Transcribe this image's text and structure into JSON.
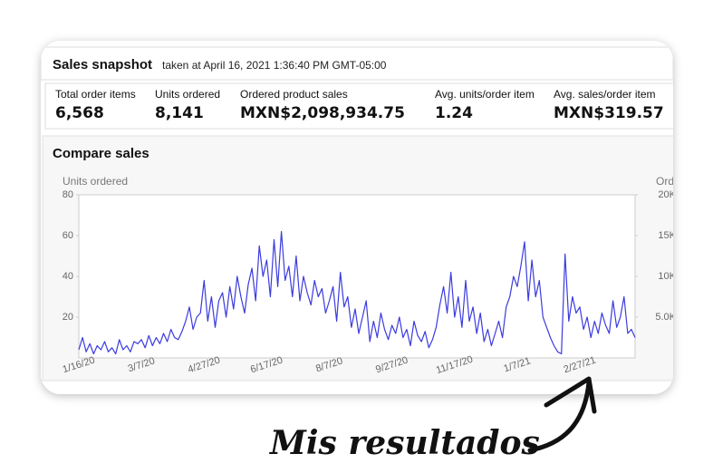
{
  "header": {
    "title": "Sales snapshot",
    "subtitle": "taken at April 16, 2021 1:36:40 PM GMT-05:00"
  },
  "metrics": [
    {
      "label": "Total order items",
      "value": "6,568"
    },
    {
      "label": "Units ordered",
      "value": "8,141"
    },
    {
      "label": "Ordered product sales",
      "value": "MXN$2,098,934.75"
    },
    {
      "label": "Avg. units/order item",
      "value": "1.24"
    },
    {
      "label": "Avg. sales/order item",
      "value": "MXN$319.57"
    }
  ],
  "chart_data": {
    "type": "line",
    "title": "Compare sales",
    "ylabel": "Units ordered",
    "y2label": "Ord",
    "color": "#3b3bdf",
    "categories": [
      "1/16/20",
      null,
      null,
      null,
      null,
      null,
      null,
      null,
      null,
      null,
      null,
      null,
      null,
      null,
      null,
      null,
      null,
      "3/7/20",
      null,
      null,
      null,
      null,
      null,
      null,
      null,
      null,
      null,
      null,
      null,
      null,
      null,
      null,
      null,
      null,
      "4/27/20",
      null,
      null,
      null,
      null,
      null,
      null,
      null,
      null,
      null,
      null,
      null,
      null,
      null,
      null,
      null,
      null,
      "6/17/20",
      null,
      null,
      null,
      null,
      null,
      null,
      null,
      null,
      null,
      null,
      null,
      null,
      null,
      null,
      null,
      null,
      "8/7/20",
      null,
      null,
      null,
      null,
      null,
      null,
      null,
      null,
      null,
      null,
      null,
      null,
      null,
      null,
      null,
      null,
      "9/27/20",
      null,
      null,
      null,
      null,
      null,
      null,
      null,
      null,
      null,
      null,
      null,
      null,
      null,
      null,
      null,
      null,
      "11/17/20",
      null,
      null,
      null,
      null,
      null,
      null,
      null,
      null,
      null,
      null,
      null,
      null,
      null,
      null,
      null,
      null,
      "1/7/21",
      null,
      null,
      null,
      null,
      null,
      null,
      null,
      null,
      null,
      null,
      null,
      null,
      null,
      null,
      null,
      null,
      "2/27/21",
      null,
      null,
      null,
      null,
      null,
      null,
      null,
      null,
      null,
      null,
      null,
      null,
      null,
      null,
      null
    ],
    "values": [
      4,
      10,
      3,
      7,
      2,
      6,
      4,
      8,
      3,
      5,
      2,
      9,
      4,
      6,
      3,
      8,
      7,
      9,
      5,
      11,
      6,
      10,
      7,
      12,
      8,
      14,
      10,
      9,
      13,
      18,
      25,
      14,
      20,
      22,
      38,
      18,
      30,
      15,
      28,
      32,
      20,
      35,
      24,
      40,
      30,
      22,
      36,
      44,
      28,
      55,
      40,
      48,
      30,
      58,
      35,
      62,
      38,
      45,
      30,
      50,
      28,
      40,
      32,
      26,
      38,
      30,
      34,
      22,
      28,
      35,
      18,
      42,
      25,
      30,
      15,
      24,
      12,
      20,
      28,
      8,
      18,
      10,
      22,
      14,
      9,
      16,
      12,
      20,
      10,
      14,
      6,
      18,
      11,
      8,
      13,
      5,
      9,
      15,
      26,
      35,
      22,
      42,
      20,
      30,
      15,
      38,
      18,
      25,
      12,
      22,
      8,
      14,
      6,
      12,
      18,
      10,
      25,
      30,
      40,
      35,
      45,
      57,
      28,
      48,
      30,
      38,
      20,
      15,
      10,
      6,
      3,
      2,
      51,
      18,
      30,
      22,
      25,
      14,
      20,
      10,
      18,
      12,
      22,
      16,
      12,
      28,
      15,
      20,
      30,
      12,
      14,
      10
    ],
    "ylim": [
      0,
      80
    ],
    "yticks": [
      20,
      40,
      60,
      80
    ],
    "y2lim": [
      0,
      20000
    ],
    "y2ticks": [
      {
        "value": 5000,
        "label": "5.0K"
      },
      {
        "value": 10000,
        "label": "10K"
      },
      {
        "value": 15000,
        "label": "15K"
      },
      {
        "value": 20000,
        "label": "20K"
      }
    ]
  },
  "annotation": "Mis resultados"
}
